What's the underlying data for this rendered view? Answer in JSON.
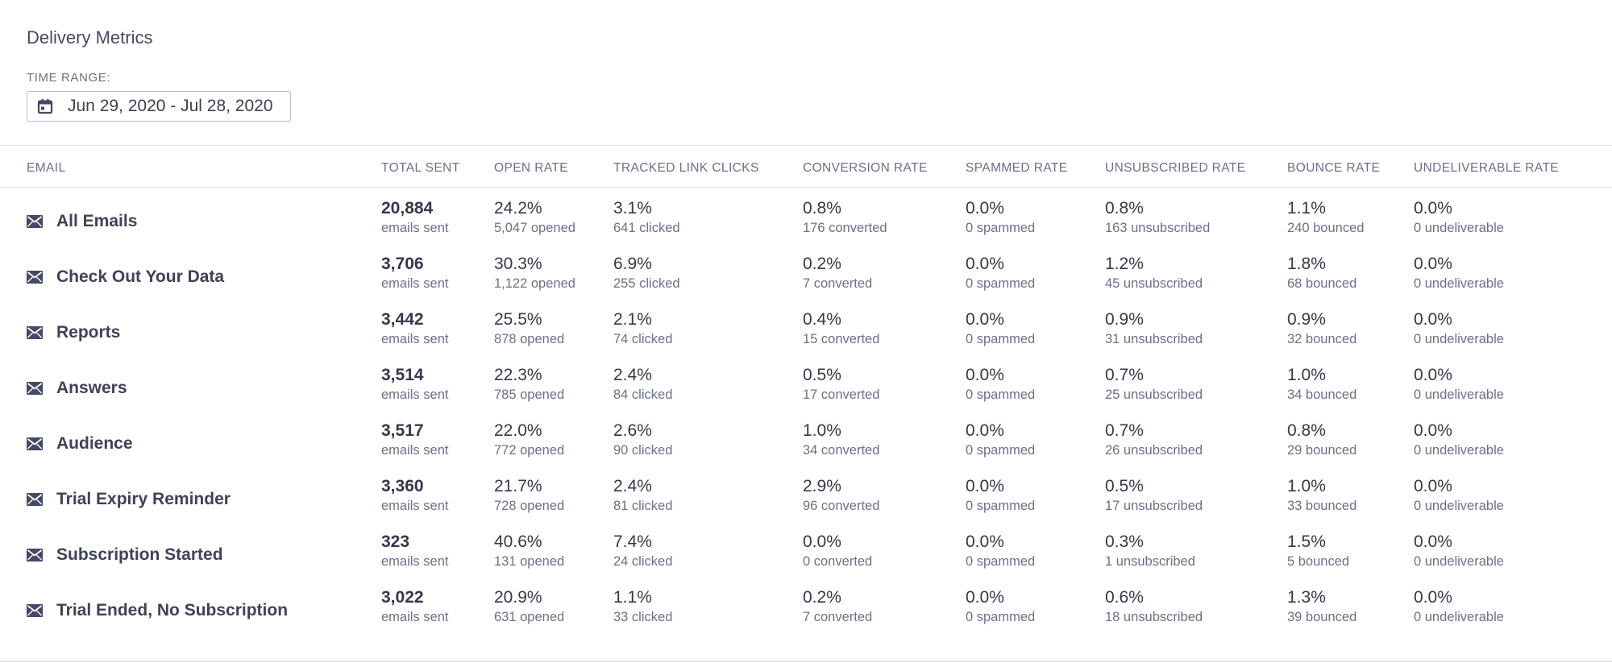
{
  "header": {
    "title": "Delivery Metrics",
    "range_label": "TIME RANGE:",
    "date_range": "Jun 29, 2020 - Jul 28, 2020",
    "calendar_icon": "calendar-icon"
  },
  "columns": [
    "EMAIL",
    "TOTAL SENT",
    "OPEN RATE",
    "TRACKED LINK CLICKS",
    "CONVERSION RATE",
    "SPAMMED RATE",
    "UNSUBSCRIBED RATE",
    "BOUNCE RATE",
    "UNDELIVERABLE RATE"
  ],
  "row_icon": "envelope-icon",
  "rows": [
    {
      "name": "All Emails",
      "sent": "20,884",
      "sent_sub": "emails sent",
      "open": "24.2%",
      "open_sub": "5,047 opened",
      "clicks": "3.1%",
      "clicks_sub": "641 clicked",
      "conv": "0.8%",
      "conv_sub": "176 converted",
      "spam": "0.0%",
      "spam_sub": "0 spammed",
      "unsub": "0.8%",
      "unsub_sub": "163 unsubscribed",
      "bounce": "1.1%",
      "bounce_sub": "240 bounced",
      "undel": "0.0%",
      "undel_sub": "0 undeliverable"
    },
    {
      "name": "Check Out Your Data",
      "sent": "3,706",
      "sent_sub": "emails sent",
      "open": "30.3%",
      "open_sub": "1,122 opened",
      "clicks": "6.9%",
      "clicks_sub": "255 clicked",
      "conv": "0.2%",
      "conv_sub": "7 converted",
      "spam": "0.0%",
      "spam_sub": "0 spammed",
      "unsub": "1.2%",
      "unsub_sub": "45 unsubscribed",
      "bounce": "1.8%",
      "bounce_sub": "68 bounced",
      "undel": "0.0%",
      "undel_sub": "0 undeliverable"
    },
    {
      "name": "Reports",
      "sent": "3,442",
      "sent_sub": "emails sent",
      "open": "25.5%",
      "open_sub": "878 opened",
      "clicks": "2.1%",
      "clicks_sub": "74 clicked",
      "conv": "0.4%",
      "conv_sub": "15 converted",
      "spam": "0.0%",
      "spam_sub": "0 spammed",
      "unsub": "0.9%",
      "unsub_sub": "31 unsubscribed",
      "bounce": "0.9%",
      "bounce_sub": "32 bounced",
      "undel": "0.0%",
      "undel_sub": "0 undeliverable"
    },
    {
      "name": "Answers",
      "sent": "3,514",
      "sent_sub": "emails sent",
      "open": "22.3%",
      "open_sub": "785 opened",
      "clicks": "2.4%",
      "clicks_sub": "84 clicked",
      "conv": "0.5%",
      "conv_sub": "17 converted",
      "spam": "0.0%",
      "spam_sub": "0 spammed",
      "unsub": "0.7%",
      "unsub_sub": "25 unsubscribed",
      "bounce": "1.0%",
      "bounce_sub": "34 bounced",
      "undel": "0.0%",
      "undel_sub": "0 undeliverable"
    },
    {
      "name": "Audience",
      "sent": "3,517",
      "sent_sub": "emails sent",
      "open": "22.0%",
      "open_sub": "772 opened",
      "clicks": "2.6%",
      "clicks_sub": "90 clicked",
      "conv": "1.0%",
      "conv_sub": "34 converted",
      "spam": "0.0%",
      "spam_sub": "0 spammed",
      "unsub": "0.7%",
      "unsub_sub": "26 unsubscribed",
      "bounce": "0.8%",
      "bounce_sub": "29 bounced",
      "undel": "0.0%",
      "undel_sub": "0 undeliverable"
    },
    {
      "name": "Trial Expiry Reminder",
      "sent": "3,360",
      "sent_sub": "emails sent",
      "open": "21.7%",
      "open_sub": "728 opened",
      "clicks": "2.4%",
      "clicks_sub": "81 clicked",
      "conv": "2.9%",
      "conv_sub": "96 converted",
      "spam": "0.0%",
      "spam_sub": "0 spammed",
      "unsub": "0.5%",
      "unsub_sub": "17 unsubscribed",
      "bounce": "1.0%",
      "bounce_sub": "33 bounced",
      "undel": "0.0%",
      "undel_sub": "0 undeliverable"
    },
    {
      "name": "Subscription Started",
      "sent": "323",
      "sent_sub": "emails sent",
      "open": "40.6%",
      "open_sub": "131 opened",
      "clicks": "7.4%",
      "clicks_sub": "24 clicked",
      "conv": "0.0%",
      "conv_sub": "0 converted",
      "spam": "0.0%",
      "spam_sub": "0 spammed",
      "unsub": "0.3%",
      "unsub_sub": "1 unsubscribed",
      "bounce": "1.5%",
      "bounce_sub": "5 bounced",
      "undel": "0.0%",
      "undel_sub": "0 undeliverable"
    },
    {
      "name": "Trial Ended, No Subscription",
      "sent": "3,022",
      "sent_sub": "emails sent",
      "open": "20.9%",
      "open_sub": "631 opened",
      "clicks": "1.1%",
      "clicks_sub": "33 clicked",
      "conv": "0.2%",
      "conv_sub": "7 converted",
      "spam": "0.0%",
      "spam_sub": "0 spammed",
      "unsub": "0.6%",
      "unsub_sub": "18 unsubscribed",
      "bounce": "1.3%",
      "bounce_sub": "39 bounced",
      "undel": "0.0%",
      "undel_sub": "0 undeliverable"
    }
  ]
}
